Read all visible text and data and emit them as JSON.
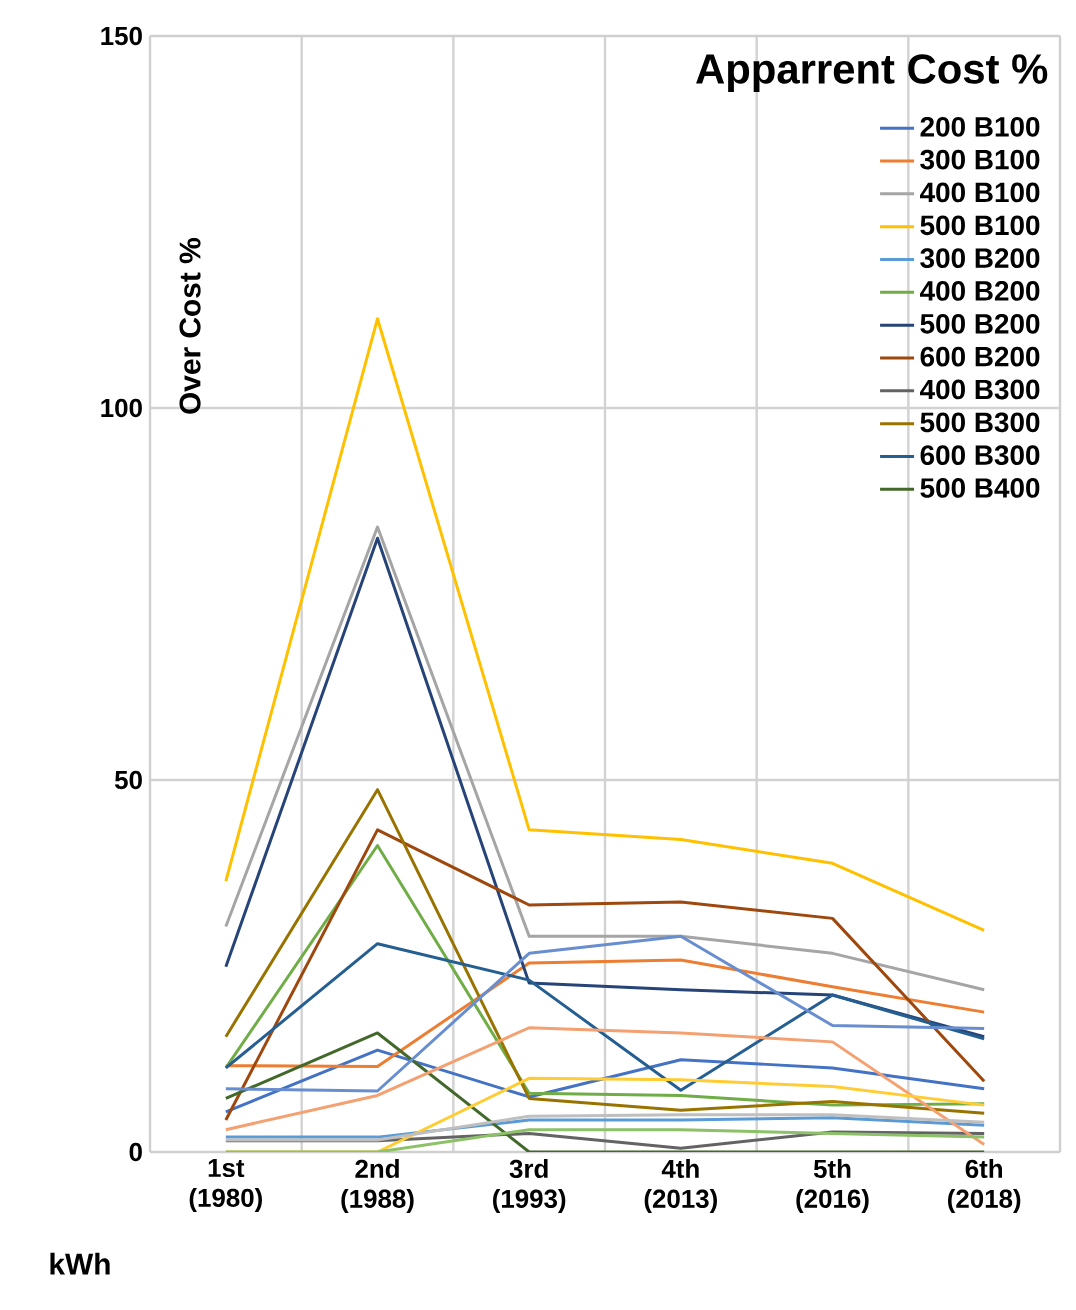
{
  "chart_data": {
    "type": "line",
    "legend_title": "Apparrent Cost %",
    "ylabel": "Over Cost %",
    "xlabel": "kWh",
    "categories": [
      "1st (1980)",
      "2nd (1988)",
      "3rd (1993)",
      "4th (2013)",
      "5th (2016)",
      "6th (2018)"
    ],
    "ylim": [
      0,
      150
    ],
    "yticks": [
      0,
      50,
      100,
      150
    ],
    "grid": true,
    "legend": "top right",
    "marker": "none",
    "line_style": "solid",
    "series": [
      {
        "name": "200 B100",
        "color": "#4472c4",
        "values": [
          5.4,
          13.7,
          7.4,
          12.4,
          11.3,
          8.5
        ]
      },
      {
        "name": "300 B100",
        "color": "#ed7d31",
        "values": [
          11.6,
          11.5,
          25.4,
          25.8,
          22.2,
          18.8
        ]
      },
      {
        "name": "400 B100",
        "color": "#a5a5a5",
        "values": [
          30.3,
          84,
          29,
          29,
          26.7,
          21.8
        ]
      },
      {
        "name": "500 B100",
        "color": "#ffc000",
        "values": [
          36.4,
          112,
          43.3,
          42,
          38.8,
          29.8
        ]
      },
      {
        "name": "300 B200",
        "color": "#5b9bd5",
        "values": [
          2,
          2,
          4.3,
          4.3,
          4.6,
          3.6
        ]
      },
      {
        "name": "400 B200",
        "color": "#70ad47",
        "values": [
          11.3,
          41.2,
          7.9,
          7.6,
          6.3,
          6.5
        ]
      },
      {
        "name": "500 B200",
        "color": "#264478",
        "values": [
          24.9,
          82.5,
          22.7,
          21.8,
          21.1,
          15.5
        ]
      },
      {
        "name": "600 B200",
        "color": "#9e480e",
        "values": [
          4.3,
          43.3,
          33.2,
          33.6,
          31.4,
          9.5
        ]
      },
      {
        "name": "400 B300",
        "color": "#636363",
        "values": [
          1.5,
          1.5,
          2.5,
          0.5,
          2.7,
          2.5
        ]
      },
      {
        "name": "500 B300",
        "color": "#997300",
        "values": [
          15.5,
          48.7,
          7.2,
          5.6,
          6.8,
          5.2
        ]
      },
      {
        "name": "600 B300",
        "color": "#255e91",
        "values": [
          11.3,
          28,
          23.1,
          8.3,
          21.1,
          15.2
        ]
      },
      {
        "name": "500 B400",
        "color": "#43682b",
        "values": [
          7.2,
          16,
          0,
          0,
          0,
          0
        ]
      },
      {
        "color": "#698ed0",
        "values": [
          8.5,
          8.2,
          26.7,
          29,
          17,
          16.6
        ]
      },
      {
        "color": "#f4a070",
        "values": [
          3,
          7.6,
          16.7,
          16,
          14.8,
          1
        ]
      },
      {
        "color": "#ffcd33",
        "values": [
          0,
          0,
          9.9,
          9.7,
          8.8,
          6.3
        ]
      },
      {
        "color": "#8cc168",
        "values": [
          0,
          0,
          3,
          3,
          2.5,
          2
        ]
      },
      {
        "color": "#bfbfbf",
        "values": [
          1.6,
          1.6,
          4.8,
          5,
          5,
          4
        ]
      }
    ]
  }
}
